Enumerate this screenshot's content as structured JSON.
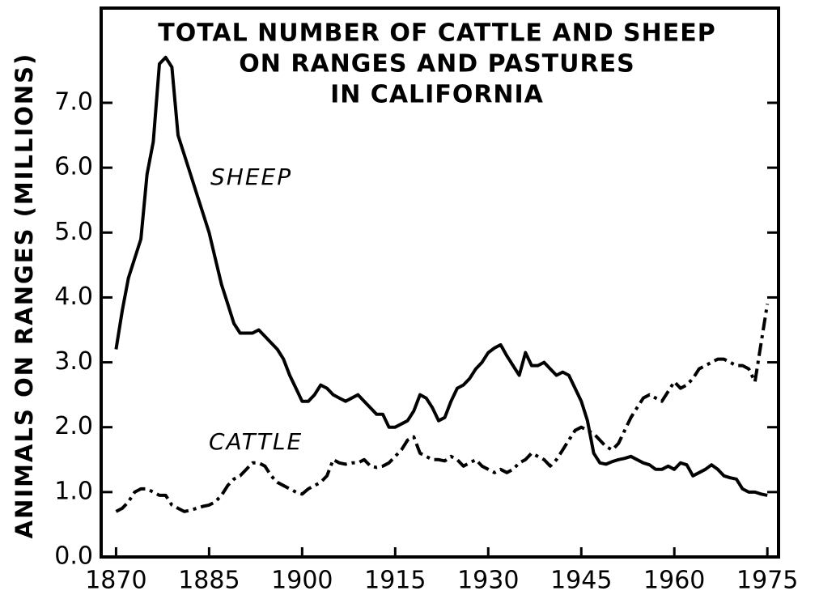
{
  "chart_data": {
    "type": "line",
    "title": [
      "TOTAL NUMBER OF CATTLE AND SHEEP",
      "ON RANGES AND PASTURES",
      "IN CALIFORNIA"
    ],
    "y_label": "ANIMALS ON RANGES (MILLIONS)",
    "x": [
      1870,
      1871,
      1872,
      1873,
      1874,
      1875,
      1876,
      1877,
      1878,
      1879,
      1880,
      1881,
      1882,
      1883,
      1884,
      1885,
      1886,
      1887,
      1888,
      1889,
      1890,
      1891,
      1892,
      1893,
      1894,
      1895,
      1896,
      1897,
      1898,
      1899,
      1900,
      1901,
      1902,
      1903,
      1904,
      1905,
      1906,
      1907,
      1908,
      1909,
      1910,
      1911,
      1912,
      1913,
      1914,
      1915,
      1916,
      1917,
      1918,
      1919,
      1920,
      1921,
      1922,
      1923,
      1924,
      1925,
      1926,
      1927,
      1928,
      1929,
      1930,
      1931,
      1932,
      1933,
      1934,
      1935,
      1936,
      1937,
      1938,
      1939,
      1940,
      1941,
      1942,
      1943,
      1944,
      1945,
      1946,
      1947,
      1948,
      1949,
      1950,
      1951,
      1952,
      1953,
      1954,
      1955,
      1956,
      1957,
      1958,
      1959,
      1960,
      1961,
      1962,
      1963,
      1964,
      1965,
      1966,
      1967,
      1968,
      1969,
      1970,
      1971,
      1972,
      1973,
      1974,
      1975
    ],
    "series": [
      {
        "name": "SHEEP",
        "color": "#000000",
        "style": "solid",
        "values": [
          3.2,
          3.8,
          4.3,
          4.6,
          4.9,
          5.9,
          6.4,
          7.6,
          7.7,
          7.55,
          6.5,
          6.2,
          5.9,
          5.6,
          5.3,
          5.0,
          4.6,
          4.2,
          3.9,
          3.6,
          3.45,
          3.45,
          3.45,
          3.5,
          3.4,
          3.3,
          3.2,
          3.05,
          2.8,
          2.6,
          2.4,
          2.4,
          2.5,
          2.65,
          2.6,
          2.5,
          2.45,
          2.4,
          2.45,
          2.5,
          2.4,
          2.3,
          2.2,
          2.2,
          2.0,
          2.0,
          2.05,
          2.1,
          2.25,
          2.5,
          2.45,
          2.3,
          2.1,
          2.15,
          2.4,
          2.6,
          2.65,
          2.75,
          2.9,
          3.0,
          3.15,
          3.22,
          3.27,
          3.1,
          2.95,
          2.8,
          3.15,
          2.95,
          2.95,
          3.0,
          2.9,
          2.8,
          2.85,
          2.8,
          2.6,
          2.4,
          2.1,
          1.6,
          1.45,
          1.43,
          1.47,
          1.5,
          1.52,
          1.55,
          1.5,
          1.45,
          1.42,
          1.35,
          1.35,
          1.4,
          1.35,
          1.45,
          1.42,
          1.25,
          1.3,
          1.35,
          1.42,
          1.35,
          1.25,
          1.22,
          1.2,
          1.05,
          1.0,
          1.0,
          0.97,
          0.95
        ]
      },
      {
        "name": "CATTLE",
        "color": "#000000",
        "style": "dashdot",
        "values": [
          0.7,
          0.75,
          0.85,
          1.0,
          1.05,
          1.05,
          1.0,
          0.95,
          0.95,
          0.8,
          0.75,
          0.7,
          0.72,
          0.75,
          0.78,
          0.8,
          0.85,
          0.95,
          1.1,
          1.2,
          1.25,
          1.35,
          1.45,
          1.45,
          1.4,
          1.25,
          1.15,
          1.1,
          1.05,
          1.0,
          0.97,
          1.05,
          1.1,
          1.15,
          1.25,
          1.5,
          1.45,
          1.43,
          1.45,
          1.45,
          1.5,
          1.4,
          1.38,
          1.4,
          1.45,
          1.55,
          1.65,
          1.8,
          1.85,
          1.6,
          1.55,
          1.5,
          1.5,
          1.48,
          1.55,
          1.5,
          1.4,
          1.45,
          1.5,
          1.4,
          1.35,
          1.3,
          1.35,
          1.3,
          1.35,
          1.45,
          1.5,
          1.6,
          1.55,
          1.5,
          1.4,
          1.5,
          1.65,
          1.8,
          1.95,
          2.0,
          1.95,
          1.9,
          1.8,
          1.7,
          1.65,
          1.75,
          1.95,
          2.15,
          2.3,
          2.45,
          2.5,
          2.45,
          2.4,
          2.55,
          2.7,
          2.6,
          2.65,
          2.75,
          2.9,
          2.95,
          3.0,
          3.05,
          3.05,
          3.0,
          2.95,
          2.95,
          2.9,
          2.7,
          3.3,
          3.9
        ]
      }
    ],
    "xlim": [
      1867.6,
      1976.8
    ],
    "ylim": [
      0,
      8.46
    ],
    "xticks": [
      1870,
      1885,
      1900,
      1915,
      1930,
      1945,
      1960,
      1975
    ],
    "yticks": [
      {
        "value": 0,
        "label": "0.0"
      },
      {
        "value": 1,
        "label": "1.0"
      },
      {
        "value": 2,
        "label": "2.0"
      },
      {
        "value": 3,
        "label": "3.0"
      },
      {
        "value": 4,
        "label": "4.0"
      },
      {
        "value": 5,
        "label": "5.0"
      },
      {
        "value": 6,
        "label": "6.0"
      },
      {
        "value": 7,
        "label": "7.0"
      }
    ],
    "grid": false
  }
}
